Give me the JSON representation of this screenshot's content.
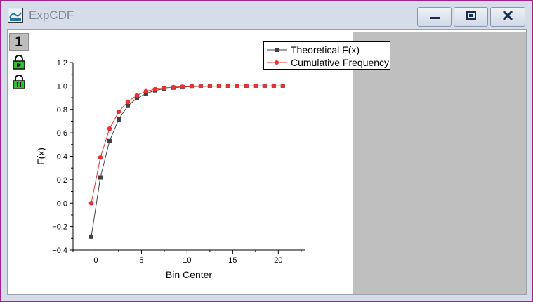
{
  "window": {
    "title": "ExpCDF",
    "border_color": "#a2238d",
    "buttons": [
      "minimize-icon",
      "maximize-icon",
      "close-icon"
    ]
  },
  "layer": {
    "number": "1"
  },
  "side_buttons": [
    "lock-play-icon",
    "lock-pause-icon"
  ],
  "chart_data": {
    "type": "line",
    "title": "",
    "xlabel": "Bin Center",
    "ylabel": "F(x)",
    "xlim": [
      -2.5,
      22.9
    ],
    "ylim": [
      -0.4,
      1.2
    ],
    "xticks": [
      0,
      5,
      10,
      15,
      20
    ],
    "xtick_labels": [
      "0",
      "5",
      "10",
      "15",
      "20"
    ],
    "yticks": [
      -0.4,
      -0.2,
      0.0,
      0.2,
      0.4,
      0.6,
      0.8,
      1.0,
      1.2
    ],
    "ytick_labels": [
      "−0.4",
      "−0.2",
      "0.0",
      "0.2",
      "0.4",
      "0.6",
      "0.8",
      "1.0",
      "1.2"
    ],
    "grid": false,
    "legend_position": "top-right",
    "x": [
      -0.5,
      0.5,
      1.5,
      2.5,
      3.5,
      4.5,
      5.5,
      6.5,
      7.5,
      8.5,
      9.5,
      10.5,
      11.5,
      12.5,
      13.5,
      14.5,
      15.5,
      16.5,
      17.5,
      18.5,
      19.5,
      20.5
    ],
    "series": [
      {
        "name": "Theoretical F(x)",
        "color": "#404040",
        "marker": "square",
        "values": [
          -0.285,
          0.22,
          0.53,
          0.715,
          0.83,
          0.895,
          0.935,
          0.962,
          0.977,
          0.986,
          0.991,
          0.995,
          0.997,
          0.998,
          0.999,
          0.999,
          1.0,
          1.0,
          1.0,
          1.0,
          1.0,
          1.0
        ]
      },
      {
        "name": "Cumulative Frequency",
        "color": "#e63232",
        "marker": "circle",
        "values": [
          0.0,
          0.39,
          0.635,
          0.78,
          0.865,
          0.92,
          0.955,
          0.972,
          0.984,
          0.99,
          0.994,
          0.997,
          0.998,
          0.999,
          0.999,
          1.0,
          1.0,
          1.0,
          1.0,
          1.0,
          1.0,
          1.0
        ]
      }
    ]
  }
}
